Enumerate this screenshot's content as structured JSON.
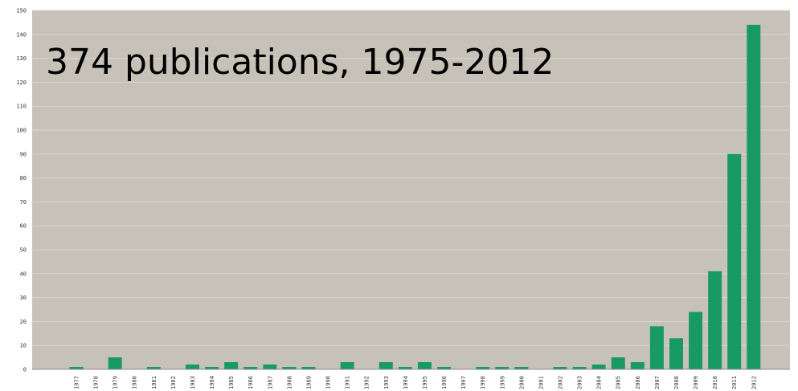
{
  "chart_data": {
    "type": "bar",
    "overlay_text": "374 publications, 1975-2012",
    "categories": [
      "1977",
      "1978",
      "1979",
      "1980",
      "1981",
      "1982",
      "1983",
      "1984",
      "1985",
      "1986",
      "1987",
      "1988",
      "1989",
      "1990",
      "1991",
      "1992",
      "1993",
      "1994",
      "1995",
      "1996",
      "1997",
      "1998",
      "1999",
      "2000",
      "2001",
      "2002",
      "2003",
      "2004",
      "2005",
      "2006",
      "2007",
      "2008",
      "2009",
      "2010",
      "2011",
      "2012"
    ],
    "values": [
      1,
      0,
      5,
      0,
      1,
      0,
      2,
      1,
      3,
      1,
      2,
      1,
      1,
      0,
      3,
      0,
      3,
      1,
      3,
      1,
      0,
      1,
      1,
      1,
      0,
      1,
      1,
      2,
      5,
      3,
      18,
      13,
      24,
      41,
      90,
      144
    ],
    "ylim": [
      0,
      150
    ],
    "yticks": [
      0,
      10,
      20,
      30,
      40,
      50,
      60,
      70,
      80,
      90,
      100,
      110,
      120,
      130,
      140,
      150
    ],
    "grid": true,
    "colors": {
      "bar": "#1a9a63",
      "plot_background": "#c6c2b8",
      "gridline": "#d9d6ce",
      "axis": "#8a8a8a"
    }
  }
}
